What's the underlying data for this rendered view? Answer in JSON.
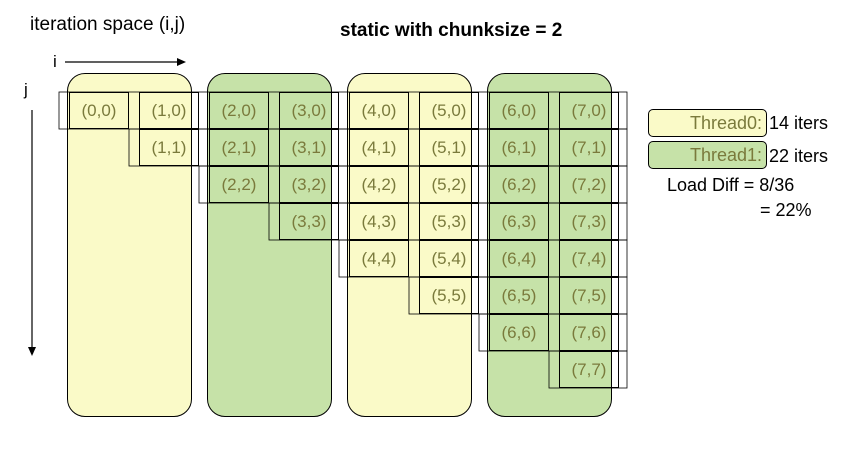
{
  "header": {
    "iteration_space": "iteration space (i,j)",
    "schedule": "static with chunksize = 2"
  },
  "axes": {
    "i_label": "i",
    "j_label": "j"
  },
  "colors": {
    "thread0": "#fafac8",
    "thread1": "#c6e2a8",
    "cell_text": "#7a7a3c"
  },
  "columns": [
    {
      "thread": 0,
      "cells": [
        "(0,0)"
      ]
    },
    {
      "thread": 0,
      "cells": [
        "(1,0)",
        "(1,1)"
      ]
    },
    {
      "thread": 1,
      "cells": [
        "(2,0)",
        "(2,1)",
        "(2,2)"
      ]
    },
    {
      "thread": 1,
      "cells": [
        "(3,0)",
        "(3,1)",
        "(3,2)",
        "(3,3)"
      ]
    },
    {
      "thread": 0,
      "cells": [
        "(4,0)",
        "(4,1)",
        "(4,2)",
        "(4,3)",
        "(4,4)"
      ]
    },
    {
      "thread": 0,
      "cells": [
        "(5,0)",
        "(5,1)",
        "(5,2)",
        "(5,3)",
        "(5,4)",
        "(5,5)"
      ]
    },
    {
      "thread": 1,
      "cells": [
        "(6,0)",
        "(6,1)",
        "(6,2)",
        "(6,3)",
        "(6,4)",
        "(6,5)",
        "(6,6)"
      ]
    },
    {
      "thread": 1,
      "cells": [
        "(7,0)",
        "(7,1)",
        "(7,2)",
        "(7,3)",
        "(7,4)",
        "(7,5)",
        "(7,6)",
        "(7,7)"
      ]
    }
  ],
  "legend": {
    "thread0_label": "Thread0:",
    "thread0_count": "14 iters",
    "thread1_label": "Thread1:",
    "thread1_count": "22 iters",
    "load_diff_line1": "Load Diff = 8/36",
    "load_diff_line2": "= 22%"
  }
}
